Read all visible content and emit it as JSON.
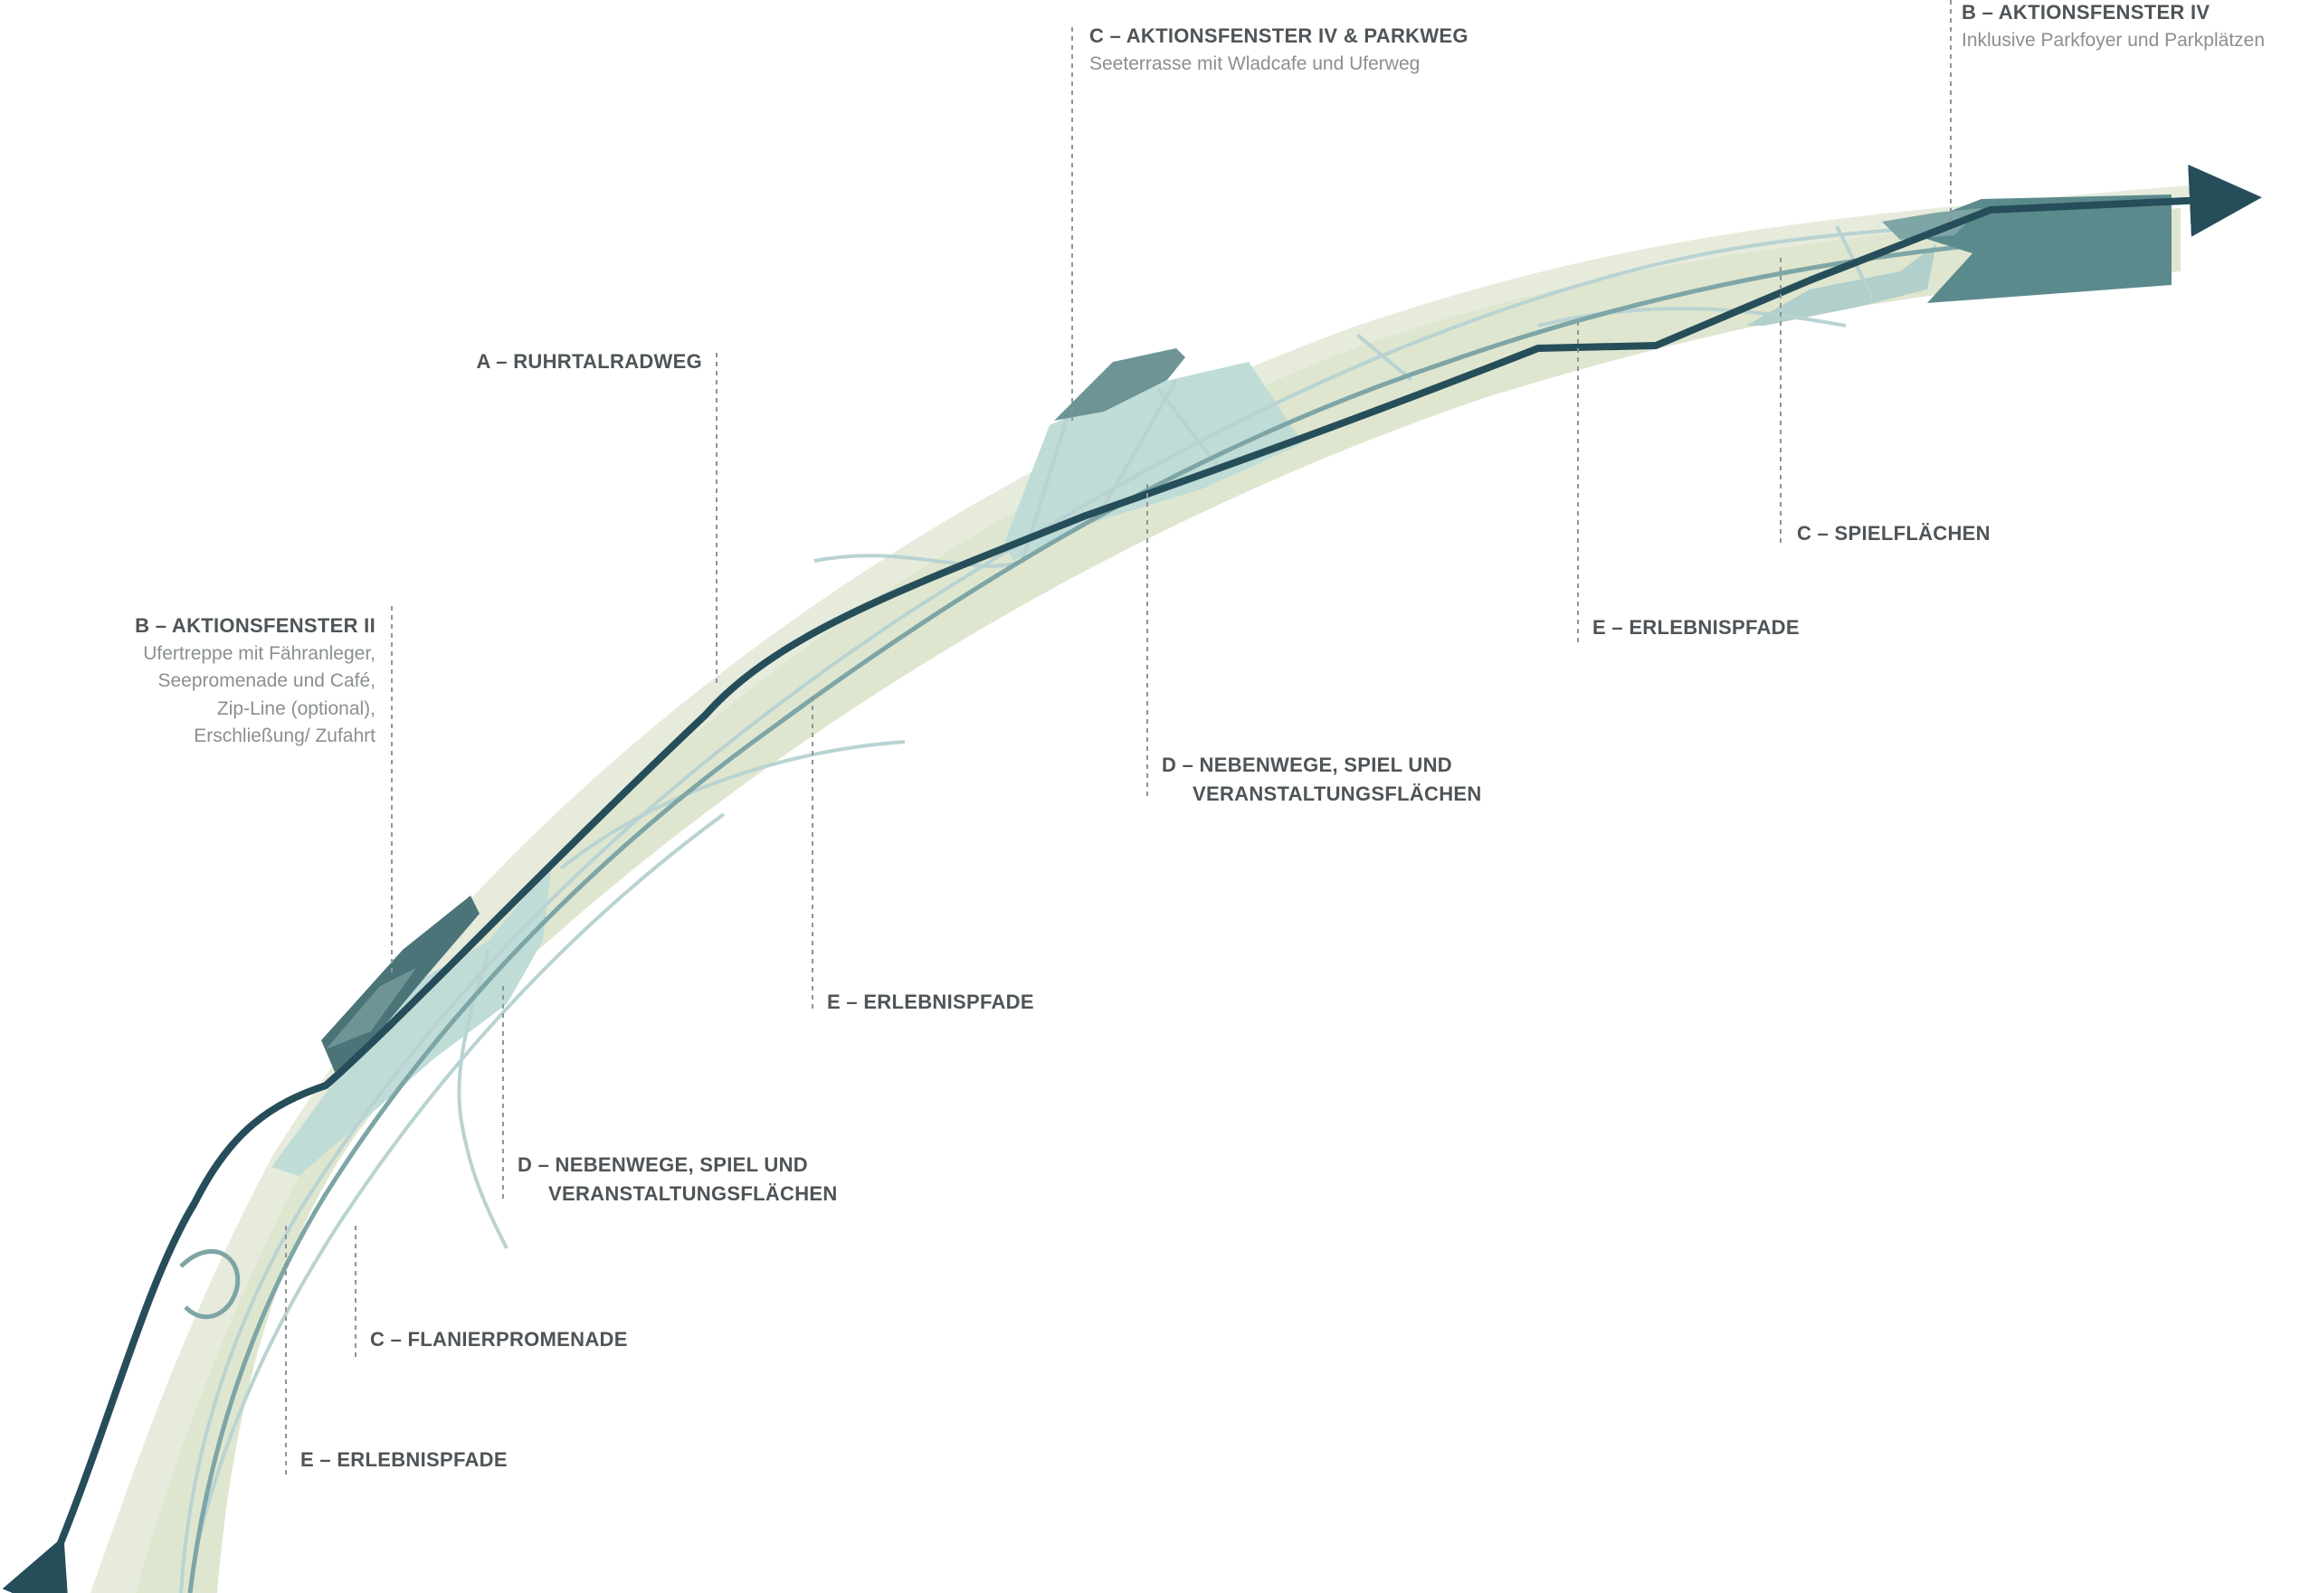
{
  "colors": {
    "outer_band": "#e6ebdc",
    "inner_band": "#dfe6cf",
    "water_zone": "#bfdcd7",
    "dark_teal": "#264e5a",
    "mid_teal": "#5b8a8c",
    "path_light": "#b9d3d2",
    "leader": "#8c9598",
    "text": "#4e5457",
    "subtext": "#8a8f92"
  },
  "labels": {
    "c_aktionsfenster_iv_title": "C – AKTIONSFENSTER IV & PARKWEG",
    "c_aktionsfenster_iv_sub": "Seeterrasse mit Wladcafe  und Uferweg",
    "b_aktionsfenster_iv_title": "B – AKTIONSFENSTER IV",
    "b_aktionsfenster_iv_sub": "Inklusive Parkfoyer und Parkplätzen",
    "a_ruhrtalradweg": "A – RUHRTALRADWEG",
    "b_aktionsfenster_ii_title": "B – AKTIONSFENSTER II",
    "b_aktionsfenster_ii_line1": "Ufertreppe mit Fähranleger,",
    "b_aktionsfenster_ii_line2": "Seepromenade und Café,",
    "b_aktionsfenster_ii_line3": "Zip-Line (optional),",
    "b_aktionsfenster_ii_line4": "Erschließung/ Zufahrt",
    "c_spielflaechen": "C – SPIELFLÄCHEN",
    "e_erlebnispfade_right": "E – ERLEBNISPFADE",
    "d_nebenwege_right_line1": "D – NEBENWEGE, SPIEL UND",
    "d_nebenwege_right_line2": "VERANSTALTUNGSFLÄCHEN",
    "e_erlebnispfade_mid": "E – ERLEBNISPFADE",
    "d_nebenwege_left_line1": "D – NEBENWEGE, SPIEL UND",
    "d_nebenwege_left_line2": "VERANSTALTUNGSFLÄCHEN",
    "c_flanierpromenade": "C – FLANIERPROMENADE",
    "e_erlebnispfade_left": "E – ERLEBNISPFADE"
  }
}
